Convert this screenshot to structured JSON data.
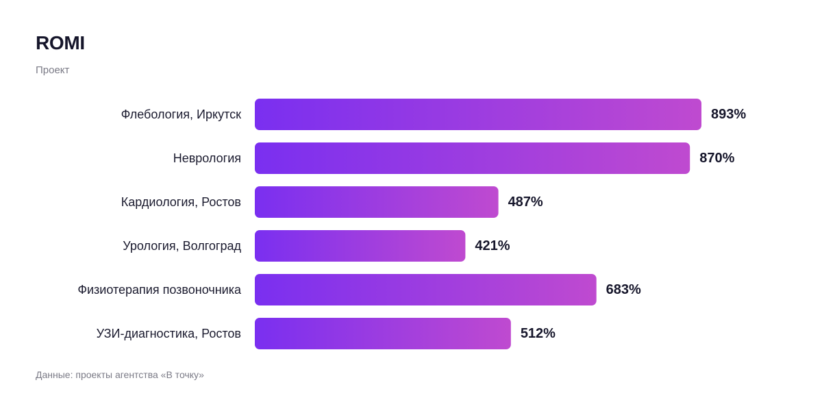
{
  "chart_data": {
    "type": "bar",
    "orientation": "horizontal",
    "title": "ROMI",
    "subtitle": "Проект",
    "categories": [
      "Флебология, Иркутск",
      "Неврология",
      "Кардиология, Ростов",
      "Урология, Волгоград",
      "Физиотерапия позвоночника",
      "УЗИ-диагностика, Ростов"
    ],
    "values": [
      893,
      870,
      487,
      421,
      683,
      512
    ],
    "value_labels": [
      "893%",
      "870%",
      "487%",
      "421%",
      "683%",
      "512%"
    ],
    "unit": "%",
    "xlim": [
      0,
      893
    ],
    "grid": false,
    "legend": "none",
    "colors": {
      "bar_start": "#7a2ff0",
      "bar_end": "#bf4ad0",
      "label": "#1a1a2e",
      "value_label": "#15152a"
    },
    "source": "Данные: проекты агентства «В точку»"
  }
}
